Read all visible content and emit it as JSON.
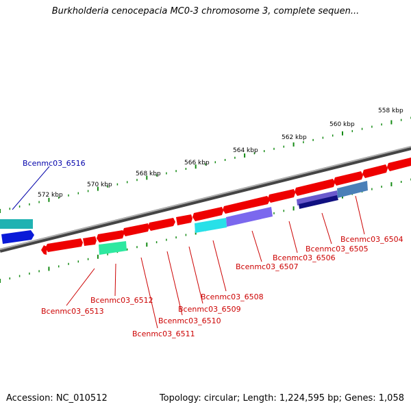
{
  "title": "Burkholderia cenocepacia MC0-3 chromosome 3, complete sequen...",
  "footer": {
    "accession": "Accession: NC_010512",
    "info": "Topology: circular; Length: 1,224,595 bp; Genes: 1,058"
  },
  "colors": {
    "backbone": "#808080",
    "tick": "#138a13",
    "cds": "#ee0000",
    "cds_light": "#ff8080",
    "label_red": "#cc0000",
    "label_blue": "#0000aa"
  },
  "tick_labels": [
    "558 kbp",
    "560 kbp",
    "562 kbp",
    "564 kbp",
    "566 kbp",
    "568 kbp",
    "570 kbp",
    "572 kbp"
  ],
  "gene_labels": [
    {
      "id": "Bcenmc03_6504",
      "color": "red"
    },
    {
      "id": "Bcenmc03_6505",
      "color": "red"
    },
    {
      "id": "Bcenmc03_6506",
      "color": "red"
    },
    {
      "id": "Bcenmc03_6507",
      "color": "red"
    },
    {
      "id": "Bcenmc03_6508",
      "color": "red"
    },
    {
      "id": "Bcenmc03_6509",
      "color": "red"
    },
    {
      "id": "Bcenmc03_6510",
      "color": "red"
    },
    {
      "id": "Bcenmc03_6511",
      "color": "red"
    },
    {
      "id": "Bcenmc03_6512",
      "color": "red"
    },
    {
      "id": "Bcenmc03_6513",
      "color": "red"
    },
    {
      "id": "Bcenmc03_6516",
      "color": "blue"
    }
  ]
}
